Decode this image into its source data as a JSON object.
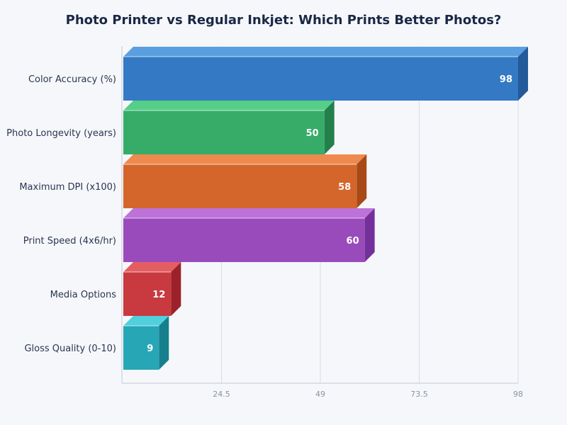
{
  "chart_data": {
    "type": "bar",
    "orientation": "horizontal",
    "style": "3d",
    "title": "Photo Printer vs Regular Inkjet: Which Prints Better Photos?",
    "xlabel": "",
    "ylabel": "",
    "categories": [
      "Color Accuracy (%)",
      "Photo Longevity (years)",
      "Maximum DPI (x100)",
      "Print Speed (4x6/hr)",
      "Media Options",
      "Gloss Quality (0-10)"
    ],
    "values": [
      98,
      50,
      58,
      60,
      12,
      9
    ],
    "data_labels": [
      "98",
      "50",
      "58",
      "60",
      "12",
      "9"
    ],
    "xlim": [
      0,
      98
    ],
    "xticks": [
      24.5,
      49,
      73.5,
      98
    ],
    "xtick_labels": [
      "24.5",
      "49",
      "73.5",
      "98"
    ],
    "grid": "vertical",
    "legend": "none",
    "colors": [
      {
        "front": "#3479c4",
        "top": "#5a9fe0",
        "side": "#235a9a"
      },
      {
        "front": "#36ac68",
        "top": "#55cf88",
        "side": "#23804a"
      },
      {
        "front": "#d4662c",
        "top": "#ee8a50",
        "side": "#a74a18"
      },
      {
        "front": "#9a4bbb",
        "top": "#bd72da",
        "side": "#74309a"
      },
      {
        "front": "#c83a40",
        "top": "#e35e63",
        "side": "#9a2228"
      },
      {
        "front": "#27a6b6",
        "top": "#50d0dd",
        "side": "#167f8c"
      }
    ]
  }
}
